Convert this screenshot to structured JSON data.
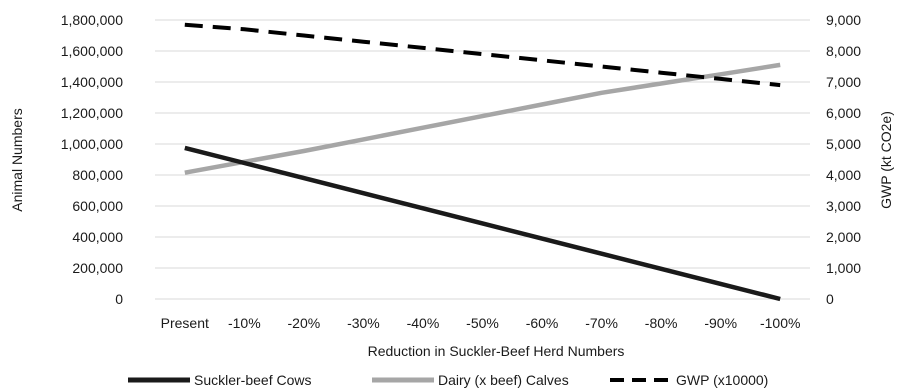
{
  "chart_data": {
    "type": "line",
    "xlabel": "Reduction in Suckler-Beef Herd Numbers",
    "ylabel": "Animal Numbers",
    "y2label": "GWP (kt CO2e)",
    "categories": [
      "Present",
      "-10%",
      "-20%",
      "-30%",
      "-40%",
      "-50%",
      "-60%",
      "-70%",
      "-80%",
      "-90%",
      "-100%"
    ],
    "ylim": [
      0,
      1800000
    ],
    "y2lim": [
      0,
      9000
    ],
    "yticks": [
      "0",
      "200,000",
      "400,000",
      "600,000",
      "800,000",
      "1,000,000",
      "1,200,000",
      "1,400,000",
      "1,600,000",
      "1,800,000"
    ],
    "y2ticks": [
      "0",
      "1,000",
      "2,000",
      "3,000",
      "4,000",
      "5,000",
      "6,000",
      "7,000",
      "8,000",
      "9,000"
    ],
    "grid": true,
    "legend_position": "bottom",
    "series": [
      {
        "name": "Suckler-beef Cows",
        "axis": "left",
        "style": "solid",
        "color": "#1a1a1a",
        "values": [
          975000,
          877500,
          780000,
          682500,
          585000,
          487500,
          390000,
          292500,
          195000,
          97500,
          0
        ]
      },
      {
        "name": "Dairy (x beef) Calves",
        "axis": "left",
        "style": "solid",
        "color": "#a6a6a6",
        "values": [
          815000,
          885000,
          955000,
          1030000,
          1105000,
          1180000,
          1255000,
          1330000,
          1390000,
          1450000,
          1510000
        ]
      },
      {
        "name": "GWP (x10000)",
        "axis": "right",
        "style": "dashed",
        "color": "#000000",
        "values": [
          8850,
          8700,
          8500,
          8300,
          8100,
          7900,
          7700,
          7500,
          7300,
          7100,
          6900
        ]
      }
    ]
  }
}
